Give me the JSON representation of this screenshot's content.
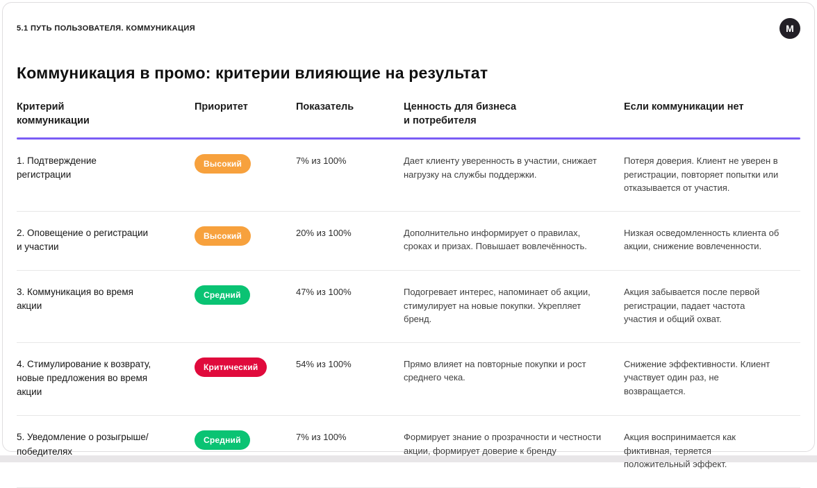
{
  "page": {
    "breadcrumb": "5.1 ПУТЬ ПОЛЬЗОВАТЕЛЯ. КОММУНИКАЦИЯ",
    "title": "Коммуникация в промо: критерии влияющие на результат",
    "logo_letter": "M"
  },
  "colors": {
    "accent_line": "#7a5cf5",
    "priority_high": "#f7a13d",
    "priority_medium": "#0ac373",
    "priority_critical": "#e00a3c"
  },
  "table": {
    "columns": [
      {
        "label": "Критерий\nкоммуникации"
      },
      {
        "label": "Приоритет"
      },
      {
        "label": "Показатель"
      },
      {
        "label": "Ценность для бизнеса\nи потребителя"
      },
      {
        "label": "Если коммуникации нет"
      }
    ],
    "rows": [
      {
        "criterion": "1. Подтверждение регистрации",
        "priority": {
          "label": "Высокий",
          "color": "#f7a13d"
        },
        "indicator": "7% из 100%",
        "value": "Дает клиенту уверенность в участии, снижает нагрузку на службы поддержки.",
        "if_absent": "Потеря доверия. Клиент не уверен в регистрации, повторяет попытки или отказывается от участия."
      },
      {
        "criterion": "2. Оповещение о регистрации и участии",
        "priority": {
          "label": "Высокий",
          "color": "#f7a13d"
        },
        "indicator": "20% из 100%",
        "value": "Дополнительно информирует о правилах, сроках и призах. Повышает вовлечённость.",
        "if_absent": "Низкая осведомленность клиента об акции, снижение вовлеченности."
      },
      {
        "criterion": "3. Коммуникация во время акции",
        "priority": {
          "label": "Средний",
          "color": "#0ac373"
        },
        "indicator": "47% из 100%",
        "value": "Подогревает интерес, напоминает об акции, стимулирует на новые покупки. Укрепляет бренд.",
        "if_absent": "Акция забывается после первой регистрации, падает частота участия и общий охват."
      },
      {
        "criterion": "4. Стимулирование к возврату, новые предложения во время акции",
        "priority": {
          "label": "Критический",
          "color": "#e00a3c"
        },
        "indicator": "54% из 100%",
        "value": "Прямо влияет на повторные покупки и рост среднего чека.",
        "if_absent": "Снижение эффективности. Клиент участвует один раз, не возвращается."
      },
      {
        "criterion": "5. Уведомление о розыгрыше/победителях",
        "priority": {
          "label": "Средний",
          "color": "#0ac373"
        },
        "indicator": "7% из 100%",
        "value": "Формирует знание о прозрачности и честности акции, формирует доверие к бренду",
        "if_absent": "Акция воспринимается как фиктивная, теряется положительный эффект."
      }
    ]
  }
}
